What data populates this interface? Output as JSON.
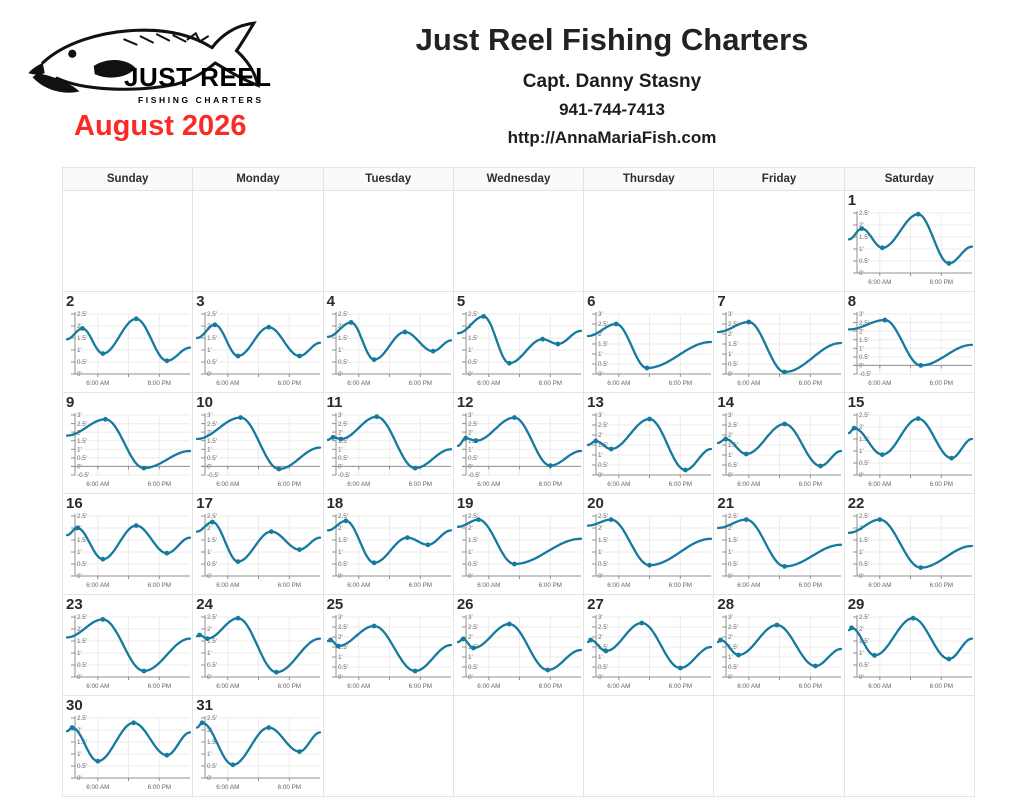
{
  "header": {
    "title": "Just Reel Fishing Charters",
    "captain": "Capt. Danny Stasny",
    "phone": "941-744-7413",
    "website": "http://AnnaMariaFish.com",
    "month_title": "August 2026",
    "logo_text": "JUST REEL",
    "logo_subtext": "FISHING CHARTERS"
  },
  "colors": {
    "accent_red": "#fa2a24",
    "tide_line": "#16799f",
    "grid_border": "#e4e4e4",
    "chart_grid": "#ebebeb",
    "axis": "#909090",
    "tick_label": "#666666"
  },
  "calendar": {
    "weekdays": [
      "Sunday",
      "Monday",
      "Tuesday",
      "Wednesday",
      "Thursday",
      "Friday",
      "Saturday"
    ],
    "first_day_column": 6,
    "rows": 6,
    "x_tick_labels": [
      "6:00 AM",
      "6:00 PM"
    ]
  },
  "chart_data": {
    "type": "line",
    "title": "Daily tide height charts, August 2026",
    "x_unit": "hour-of-day",
    "x_range": [
      0,
      24
    ],
    "x_tick_labels": [
      "6:00 AM",
      "6:00 PM"
    ],
    "y_unit": "feet",
    "y_tick_step": 0.5,
    "days": [
      {
        "day": 1,
        "ylim": [
          0,
          2.5
        ],
        "points": [
          {
            "t": 0,
            "h": 1.4
          },
          {
            "t": 2.5,
            "h": 1.85,
            "m": true
          },
          {
            "t": 6.5,
            "h": 1.05,
            "m": true
          },
          {
            "t": 13.5,
            "h": 2.45,
            "m": true
          },
          {
            "t": 19.5,
            "h": 0.4,
            "m": true
          },
          {
            "t": 24,
            "h": 1.1
          }
        ]
      },
      {
        "day": 2,
        "ylim": [
          0,
          2.5
        ],
        "points": [
          {
            "t": 0,
            "h": 1.45
          },
          {
            "t": 3,
            "h": 1.9,
            "m": true
          },
          {
            "t": 7,
            "h": 0.85,
            "m": true
          },
          {
            "t": 13.5,
            "h": 2.3,
            "m": true
          },
          {
            "t": 19.5,
            "h": 0.55,
            "m": true
          },
          {
            "t": 24,
            "h": 1.1
          }
        ]
      },
      {
        "day": 3,
        "ylim": [
          0,
          2.5
        ],
        "points": [
          {
            "t": 0,
            "h": 1.5
          },
          {
            "t": 3.5,
            "h": 2.05,
            "m": true
          },
          {
            "t": 8,
            "h": 0.75,
            "m": true
          },
          {
            "t": 14,
            "h": 1.95,
            "m": true
          },
          {
            "t": 20,
            "h": 0.75,
            "m": true
          },
          {
            "t": 24,
            "h": 1.3
          }
        ]
      },
      {
        "day": 4,
        "ylim": [
          0,
          2.5
        ],
        "points": [
          {
            "t": 0,
            "h": 1.55
          },
          {
            "t": 4.5,
            "h": 2.15,
            "m": true
          },
          {
            "t": 9,
            "h": 0.6,
            "m": true
          },
          {
            "t": 15,
            "h": 1.75,
            "m": true
          },
          {
            "t": 20.5,
            "h": 0.95,
            "m": true
          },
          {
            "t": 24,
            "h": 1.4
          }
        ]
      },
      {
        "day": 5,
        "ylim": [
          0,
          2.5
        ],
        "points": [
          {
            "t": 0,
            "h": 1.7
          },
          {
            "t": 5,
            "h": 2.4,
            "m": true
          },
          {
            "t": 10,
            "h": 0.45,
            "m": true
          },
          {
            "t": 16.5,
            "h": 1.45,
            "m": true
          },
          {
            "t": 19.5,
            "h": 1.25,
            "m": true
          },
          {
            "t": 24,
            "h": 1.8
          }
        ]
      },
      {
        "day": 6,
        "ylim": [
          0,
          3
        ],
        "points": [
          {
            "t": 0,
            "h": 1.9
          },
          {
            "t": 5.5,
            "h": 2.5,
            "m": true
          },
          {
            "t": 11.5,
            "h": 0.3,
            "m": true
          },
          {
            "t": 24,
            "h": 1.6
          }
        ]
      },
      {
        "day": 7,
        "ylim": [
          0,
          3
        ],
        "points": [
          {
            "t": 0,
            "h": 2.1
          },
          {
            "t": 6,
            "h": 2.6,
            "m": true
          },
          {
            "t": 13,
            "h": 0.1,
            "m": true
          },
          {
            "t": 24,
            "h": 1.55
          }
        ]
      },
      {
        "day": 8,
        "ylim": [
          -0.5,
          3
        ],
        "points": [
          {
            "t": 0,
            "h": 2.1
          },
          {
            "t": 7,
            "h": 2.65,
            "m": true
          },
          {
            "t": 14,
            "h": 0.0,
            "m": true
          },
          {
            "t": 24,
            "h": 1.2
          }
        ]
      },
      {
        "day": 9,
        "ylim": [
          -0.5,
          3
        ],
        "points": [
          {
            "t": 0,
            "h": 1.8
          },
          {
            "t": 7.5,
            "h": 2.75,
            "m": true
          },
          {
            "t": 15,
            "h": -0.1,
            "m": true
          },
          {
            "t": 24,
            "h": 0.9
          }
        ]
      },
      {
        "day": 10,
        "ylim": [
          -0.5,
          3
        ],
        "points": [
          {
            "t": 0,
            "h": 1.6
          },
          {
            "t": 8.5,
            "h": 2.85,
            "m": true
          },
          {
            "t": 16,
            "h": -0.15,
            "m": true
          },
          {
            "t": 24,
            "h": 1.1
          }
        ]
      },
      {
        "day": 11,
        "ylim": [
          -0.5,
          3
        ],
        "points": [
          {
            "t": 0,
            "h": 1.55
          },
          {
            "t": 1,
            "h": 1.7,
            "m": true
          },
          {
            "t": 2.5,
            "h": 1.6,
            "m": true
          },
          {
            "t": 9.5,
            "h": 2.9,
            "m": true
          },
          {
            "t": 17,
            "h": -0.1,
            "m": true
          },
          {
            "t": 24,
            "h": 1.0
          }
        ]
      },
      {
        "day": 12,
        "ylim": [
          -0.5,
          3
        ],
        "points": [
          {
            "t": 0,
            "h": 1.2
          },
          {
            "t": 1.5,
            "h": 1.65,
            "m": true
          },
          {
            "t": 3.5,
            "h": 1.5,
            "m": true
          },
          {
            "t": 11,
            "h": 2.85,
            "m": true
          },
          {
            "t": 18,
            "h": 0.05,
            "m": true
          },
          {
            "t": 24,
            "h": 0.9
          }
        ]
      },
      {
        "day": 13,
        "ylim": [
          0,
          3
        ],
        "points": [
          {
            "t": 0,
            "h": 1.5
          },
          {
            "t": 1.5,
            "h": 1.7,
            "m": true
          },
          {
            "t": 4.5,
            "h": 1.3,
            "m": true
          },
          {
            "t": 12,
            "h": 2.8,
            "m": true
          },
          {
            "t": 19,
            "h": 0.25,
            "m": true
          },
          {
            "t": 24,
            "h": 1.3
          }
        ]
      },
      {
        "day": 14,
        "ylim": [
          0,
          3
        ],
        "points": [
          {
            "t": 0,
            "h": 1.6
          },
          {
            "t": 1.5,
            "h": 1.8,
            "m": true
          },
          {
            "t": 5.5,
            "h": 1.05,
            "m": true
          },
          {
            "t": 13,
            "h": 2.55,
            "m": true
          },
          {
            "t": 20,
            "h": 0.45,
            "m": true
          },
          {
            "t": 24,
            "h": 1.2
          }
        ]
      },
      {
        "day": 15,
        "ylim": [
          0,
          2.5
        ],
        "points": [
          {
            "t": 0,
            "h": 1.75
          },
          {
            "t": 1,
            "h": 1.95,
            "m": true
          },
          {
            "t": 6.5,
            "h": 0.85,
            "m": true
          },
          {
            "t": 13.5,
            "h": 2.35,
            "m": true
          },
          {
            "t": 20,
            "h": 0.7,
            "m": true
          },
          {
            "t": 24,
            "h": 1.5
          }
        ]
      },
      {
        "day": 16,
        "ylim": [
          0,
          2.5
        ],
        "points": [
          {
            "t": 0,
            "h": 1.7
          },
          {
            "t": 2,
            "h": 2.0,
            "m": true
          },
          {
            "t": 7,
            "h": 0.7,
            "m": true
          },
          {
            "t": 13.5,
            "h": 2.1,
            "m": true
          },
          {
            "t": 19.5,
            "h": 0.95,
            "m": true
          },
          {
            "t": 24,
            "h": 1.6
          }
        ]
      },
      {
        "day": 17,
        "ylim": [
          0,
          2.5
        ],
        "points": [
          {
            "t": 0,
            "h": 1.85
          },
          {
            "t": 3,
            "h": 2.25,
            "m": true
          },
          {
            "t": 8,
            "h": 0.6,
            "m": true
          },
          {
            "t": 14.5,
            "h": 1.85,
            "m": true
          },
          {
            "t": 20,
            "h": 1.1,
            "m": true
          },
          {
            "t": 24,
            "h": 1.6
          }
        ]
      },
      {
        "day": 18,
        "ylim": [
          0,
          2.5
        ],
        "points": [
          {
            "t": 0,
            "h": 1.9
          },
          {
            "t": 3.5,
            "h": 2.3,
            "m": true
          },
          {
            "t": 9,
            "h": 0.55,
            "m": true
          },
          {
            "t": 15.5,
            "h": 1.6,
            "m": true
          },
          {
            "t": 19.5,
            "h": 1.3,
            "m": true
          },
          {
            "t": 24,
            "h": 1.9
          }
        ]
      },
      {
        "day": 19,
        "ylim": [
          0,
          2.5
        ],
        "points": [
          {
            "t": 0,
            "h": 2.05
          },
          {
            "t": 4,
            "h": 2.35,
            "m": true
          },
          {
            "t": 11,
            "h": 0.5,
            "m": true
          },
          {
            "t": 24,
            "h": 1.55
          }
        ]
      },
      {
        "day": 20,
        "ylim": [
          0,
          2.5
        ],
        "points": [
          {
            "t": 0,
            "h": 2.1
          },
          {
            "t": 4.5,
            "h": 2.35,
            "m": true
          },
          {
            "t": 12,
            "h": 0.45,
            "m": true
          },
          {
            "t": 24,
            "h": 1.55
          }
        ]
      },
      {
        "day": 21,
        "ylim": [
          0,
          2.5
        ],
        "points": [
          {
            "t": 0,
            "h": 2.0
          },
          {
            "t": 5.5,
            "h": 2.35,
            "m": true
          },
          {
            "t": 13,
            "h": 0.4,
            "m": true
          },
          {
            "t": 24,
            "h": 1.3
          }
        ]
      },
      {
        "day": 22,
        "ylim": [
          0,
          2.5
        ],
        "points": [
          {
            "t": 0,
            "h": 1.8
          },
          {
            "t": 6,
            "h": 2.35,
            "m": true
          },
          {
            "t": 14,
            "h": 0.35,
            "m": true
          },
          {
            "t": 24,
            "h": 1.25
          }
        ]
      },
      {
        "day": 23,
        "ylim": [
          0,
          2.5
        ],
        "points": [
          {
            "t": 0,
            "h": 1.65
          },
          {
            "t": 7,
            "h": 2.4,
            "m": true
          },
          {
            "t": 15,
            "h": 0.25,
            "m": true
          },
          {
            "t": 24,
            "h": 1.6
          }
        ]
      },
      {
        "day": 24,
        "ylim": [
          0,
          2.5
        ],
        "points": [
          {
            "t": 0,
            "h": 1.7
          },
          {
            "t": 0.5,
            "h": 1.75,
            "m": true
          },
          {
            "t": 2,
            "h": 1.6,
            "m": true
          },
          {
            "t": 8,
            "h": 2.45,
            "m": true
          },
          {
            "t": 15.5,
            "h": 0.2,
            "m": true
          },
          {
            "t": 24,
            "h": 1.6
          }
        ]
      },
      {
        "day": 25,
        "ylim": [
          0,
          3
        ],
        "points": [
          {
            "t": 0,
            "h": 1.8
          },
          {
            "t": 0.5,
            "h": 1.85,
            "m": true
          },
          {
            "t": 2,
            "h": 1.55,
            "m": true
          },
          {
            "t": 9,
            "h": 2.55,
            "m": true
          },
          {
            "t": 17,
            "h": 0.3,
            "m": true
          },
          {
            "t": 24,
            "h": 1.6
          }
        ]
      },
      {
        "day": 26,
        "ylim": [
          0,
          3
        ],
        "points": [
          {
            "t": 0,
            "h": 1.75
          },
          {
            "t": 1,
            "h": 1.9,
            "m": true
          },
          {
            "t": 3,
            "h": 1.45,
            "m": true
          },
          {
            "t": 10,
            "h": 2.65,
            "m": true
          },
          {
            "t": 17.5,
            "h": 0.35,
            "m": true
          },
          {
            "t": 24,
            "h": 1.35
          }
        ]
      },
      {
        "day": 27,
        "ylim": [
          0,
          3
        ],
        "points": [
          {
            "t": 0,
            "h": 1.75
          },
          {
            "t": 0.5,
            "h": 1.85,
            "m": true
          },
          {
            "t": 3.5,
            "h": 1.3,
            "m": true
          },
          {
            "t": 10.5,
            "h": 2.7,
            "m": true
          },
          {
            "t": 18,
            "h": 0.45,
            "m": true
          },
          {
            "t": 24,
            "h": 1.5
          }
        ]
      },
      {
        "day": 28,
        "ylim": [
          0,
          3
        ],
        "points": [
          {
            "t": 0,
            "h": 1.75
          },
          {
            "t": 0.5,
            "h": 1.85,
            "m": true
          },
          {
            "t": 4,
            "h": 1.1,
            "m": true
          },
          {
            "t": 11.5,
            "h": 2.6,
            "m": true
          },
          {
            "t": 19,
            "h": 0.55,
            "m": true
          },
          {
            "t": 24,
            "h": 1.4
          }
        ]
      },
      {
        "day": 29,
        "ylim": [
          0,
          2.5
        ],
        "points": [
          {
            "t": 0,
            "h": 1.95
          },
          {
            "t": 0.5,
            "h": 2.05,
            "m": true
          },
          {
            "t": 5,
            "h": 0.9,
            "m": true
          },
          {
            "t": 12.5,
            "h": 2.45,
            "m": true
          },
          {
            "t": 19.5,
            "h": 0.75,
            "m": true
          },
          {
            "t": 24,
            "h": 1.6
          }
        ]
      },
      {
        "day": 30,
        "ylim": [
          0,
          2.5
        ],
        "points": [
          {
            "t": 0,
            "h": 1.95
          },
          {
            "t": 1,
            "h": 2.1,
            "m": true
          },
          {
            "t": 6,
            "h": 0.7,
            "m": true
          },
          {
            "t": 13,
            "h": 2.3,
            "m": true
          },
          {
            "t": 19.5,
            "h": 0.95,
            "m": true
          },
          {
            "t": 24,
            "h": 1.9
          }
        ]
      },
      {
        "day": 31,
        "ylim": [
          0,
          2.5
        ],
        "points": [
          {
            "t": 0,
            "h": 2.1
          },
          {
            "t": 1,
            "h": 2.3,
            "m": true
          },
          {
            "t": 7,
            "h": 0.55,
            "m": true
          },
          {
            "t": 14,
            "h": 2.1,
            "m": true
          },
          {
            "t": 20,
            "h": 1.1,
            "m": true
          },
          {
            "t": 24,
            "h": 1.9
          }
        ]
      }
    ]
  }
}
